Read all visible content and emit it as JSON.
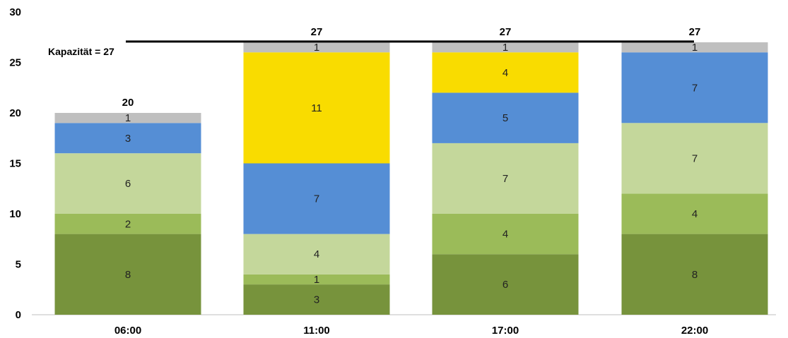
{
  "chart_data": {
    "type": "bar",
    "stacked": true,
    "title": "",
    "xlabel": "",
    "ylabel": "",
    "ylim": [
      0,
      30
    ],
    "yticks": [
      0,
      5,
      10,
      15,
      20,
      25,
      30
    ],
    "categories": [
      "06:00",
      "11:00",
      "17:00",
      "22:00"
    ],
    "series": [
      {
        "values": [
          8,
          3,
          6,
          8
        ],
        "color": "#77933c"
      },
      {
        "values": [
          2,
          1,
          4,
          4
        ],
        "color": "#9bbb59"
      },
      {
        "values": [
          6,
          4,
          7,
          7
        ],
        "color": "#c4d79b"
      },
      {
        "values": [
          3,
          7,
          5,
          7
        ],
        "color": "#558ed5"
      },
      {
        "values": [
          0,
          11,
          4,
          0
        ],
        "color": "#f9dc00"
      },
      {
        "values": [
          1,
          1,
          1,
          1
        ],
        "color": "#bfbfbf"
      }
    ],
    "totals": [
      "20",
      "27",
      "27",
      "27"
    ],
    "capacity": {
      "value": 27,
      "label": "Kapazität = 27"
    },
    "grid": false,
    "legend": "none"
  }
}
